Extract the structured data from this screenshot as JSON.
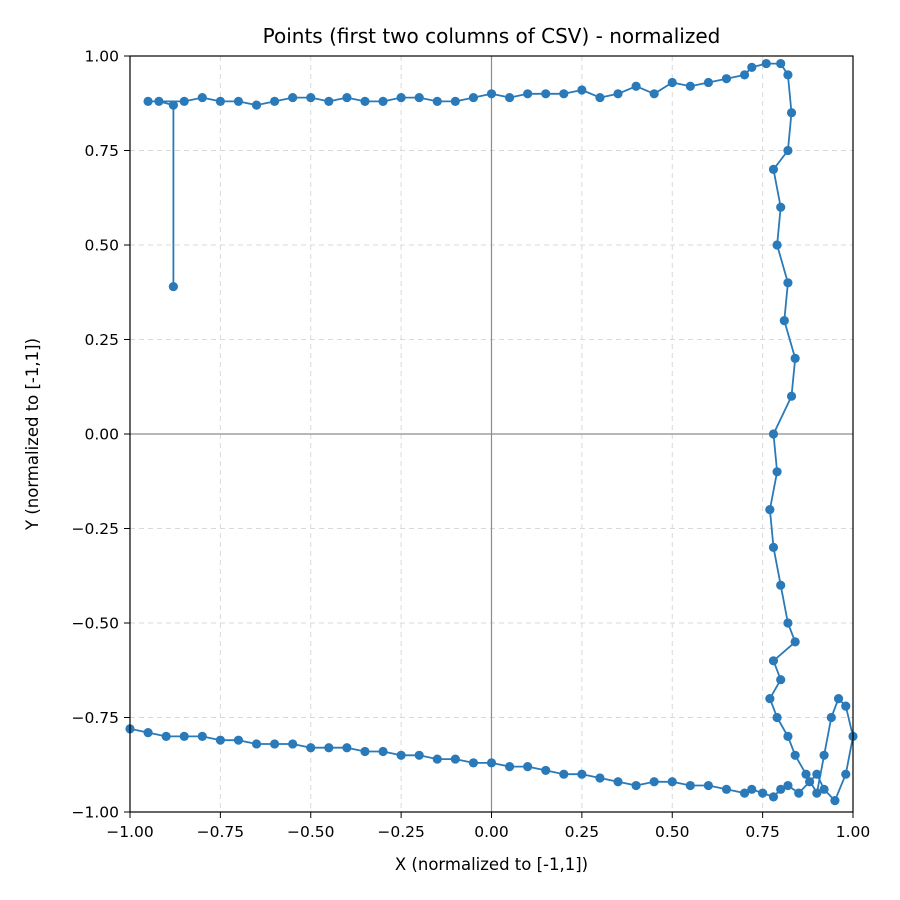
{
  "chart_data": {
    "type": "line",
    "title": "Points (first two columns of CSV) - normalized",
    "xlabel": "X (normalized to [-1,1])",
    "ylabel": "Y (normalized to [-1,1])",
    "xlim": [
      -1,
      1
    ],
    "ylim": [
      -1,
      1
    ],
    "xticks": [
      -1.0,
      -0.75,
      -0.5,
      -0.25,
      0.0,
      0.25,
      0.5,
      0.75,
      1.0
    ],
    "yticks": [
      -1.0,
      -0.75,
      -0.5,
      -0.25,
      0.0,
      0.25,
      0.5,
      0.75,
      1.0
    ],
    "xtick_labels": [
      "−1.00",
      "−0.75",
      "−0.50",
      "−0.25",
      "0.00",
      "0.25",
      "0.50",
      "0.75",
      "1.00"
    ],
    "ytick_labels": [
      "−1.00",
      "−0.75",
      "−0.50",
      "−0.25",
      "0.00",
      "0.25",
      "0.50",
      "0.75",
      "1.00"
    ],
    "grid": true,
    "grid_style": "dashed",
    "zero_lines": true,
    "marker": "circle",
    "color": "#2a7ab9",
    "series": [
      {
        "x": [
          -0.88,
          -0.88,
          -0.92,
          -0.95,
          -0.85,
          -0.8,
          -0.75,
          -0.7,
          -0.65,
          -0.6,
          -0.55,
          -0.5,
          -0.45,
          -0.4,
          -0.35,
          -0.3,
          -0.25,
          -0.2,
          -0.15,
          -0.1,
          -0.05,
          0.0,
          0.05,
          0.1,
          0.15,
          0.2,
          0.25,
          0.3,
          0.35,
          0.4,
          0.45,
          0.5,
          0.55,
          0.6,
          0.65,
          0.7,
          0.72,
          0.76,
          0.8,
          0.82,
          0.83,
          0.82,
          0.78,
          0.8,
          0.79,
          0.82,
          0.81,
          0.84,
          0.83,
          0.78,
          0.79,
          0.77,
          0.78,
          0.8,
          0.82,
          0.84,
          0.78,
          0.8,
          0.77,
          0.79,
          0.82,
          0.84,
          0.87,
          0.9,
          0.92,
          0.94,
          0.96,
          0.98,
          1.0,
          0.98,
          0.95,
          0.92,
          0.9,
          0.88,
          0.85,
          0.82,
          0.8,
          0.78,
          0.75,
          0.72,
          0.7,
          0.65,
          0.6,
          0.55,
          0.5,
          0.45,
          0.4,
          0.35,
          0.3,
          0.25,
          0.2,
          0.15,
          0.1,
          0.05,
          0.0,
          -0.05,
          -0.1,
          -0.15,
          -0.2,
          -0.25,
          -0.3,
          -0.35,
          -0.4,
          -0.45,
          -0.5,
          -0.55,
          -0.6,
          -0.65,
          -0.7,
          -0.75,
          -0.8,
          -0.85,
          -0.9,
          -0.95,
          -1.0
        ],
        "y": [
          0.39,
          0.87,
          0.88,
          0.88,
          0.88,
          0.89,
          0.88,
          0.88,
          0.87,
          0.88,
          0.89,
          0.89,
          0.88,
          0.89,
          0.88,
          0.88,
          0.89,
          0.89,
          0.88,
          0.88,
          0.89,
          0.9,
          0.89,
          0.9,
          0.9,
          0.9,
          0.91,
          0.89,
          0.9,
          0.92,
          0.9,
          0.93,
          0.92,
          0.93,
          0.94,
          0.95,
          0.97,
          0.98,
          0.98,
          0.95,
          0.85,
          0.75,
          0.7,
          0.6,
          0.5,
          0.4,
          0.3,
          0.2,
          0.1,
          0.0,
          -0.1,
          -0.2,
          -0.3,
          -0.4,
          -0.5,
          -0.55,
          -0.6,
          -0.65,
          -0.7,
          -0.75,
          -0.8,
          -0.85,
          -0.9,
          -0.95,
          -0.85,
          -0.75,
          -0.7,
          -0.72,
          -0.8,
          -0.9,
          -0.97,
          -0.94,
          -0.9,
          -0.92,
          -0.95,
          -0.93,
          -0.94,
          -0.96,
          -0.95,
          -0.94,
          -0.95,
          -0.94,
          -0.93,
          -0.93,
          -0.92,
          -0.92,
          -0.93,
          -0.92,
          -0.91,
          -0.9,
          -0.9,
          -0.89,
          -0.88,
          -0.88,
          -0.87,
          -0.87,
          -0.86,
          -0.86,
          -0.85,
          -0.85,
          -0.84,
          -0.84,
          -0.83,
          -0.83,
          -0.83,
          -0.82,
          -0.82,
          -0.82,
          -0.81,
          -0.81,
          -0.8,
          -0.8,
          -0.8,
          -0.79,
          -0.78
        ]
      }
    ]
  }
}
